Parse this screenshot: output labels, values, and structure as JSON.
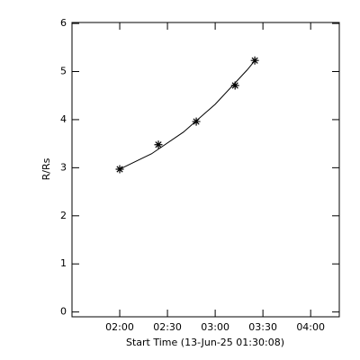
{
  "chart_data": {
    "type": "scatter",
    "x_label": "Start Time (13-Jun-25 01:30:08)",
    "y_label": "R/Rs",
    "xlim": [
      0,
      168
    ],
    "ylim": [
      -0.1,
      6.02
    ],
    "xticks": [
      {
        "value": 30,
        "label": "02:00"
      },
      {
        "value": 60,
        "label": "02:30"
      },
      {
        "value": 90,
        "label": "03:00"
      },
      {
        "value": 120,
        "label": "03:30"
      },
      {
        "value": 150,
        "label": "04:00"
      }
    ],
    "yticks": [
      0,
      1,
      2,
      3,
      4,
      5,
      6
    ],
    "series": [
      {
        "color": "#000000",
        "marker": "asterisk",
        "x": [
          30.0,
          54.3,
          78.1,
          102.5,
          114.9
        ],
        "values": [
          2.97,
          3.48,
          3.96,
          4.71,
          5.23
        ]
      },
      {
        "color": "#000000",
        "marker": "line",
        "x": [
          30,
          50,
          70,
          90,
          110,
          115
        ],
        "values": [
          2.97,
          3.29,
          3.74,
          4.32,
          5.03,
          5.23
        ]
      }
    ]
  }
}
